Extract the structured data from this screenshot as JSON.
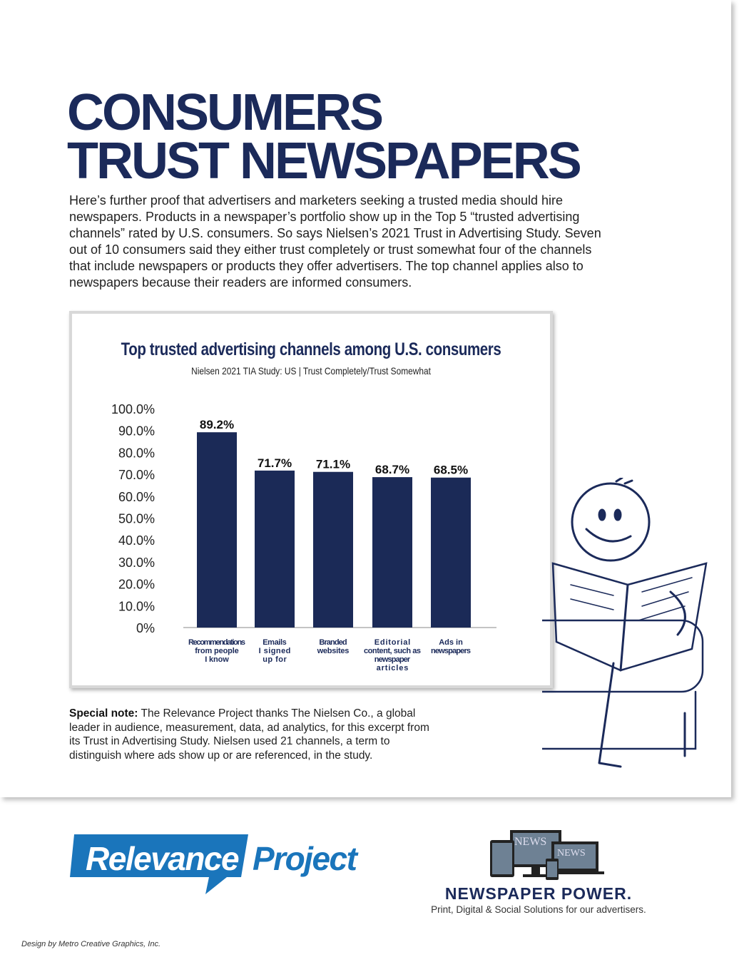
{
  "headline": {
    "line1": "CONSUMERS",
    "line2": "TRUST NEWSPAPERS"
  },
  "intro": "Here’s further proof that advertisers and marketers seeking a trusted media should hire newspapers. Products in a newspaper’s portfolio show up in the Top 5 “trusted advertising channels” rated by U.S. consumers. So says Nielsen’s 2021 Trust in Advertising Study. Seven out of 10 consumers said they either trust completely or trust somewhat four of the channels that include newspapers or products they offer advertisers. The top channel applies also to newspapers because their readers are informed consumers.",
  "chart_data": {
    "type": "bar",
    "title": "Top trusted advertising channels among U.S. consumers",
    "subtitle": "Nielsen 2021 TIA Study: US | Trust Completely/Trust Somewhat",
    "categories": [
      "Recommendations from people I know",
      "Emails I signed up for",
      "Branded websites",
      "Editorial content, such as newspaper articles",
      "Ads in newspapers"
    ],
    "category_lines": [
      [
        "Recommendations",
        "from people",
        "I know"
      ],
      [
        "Emails",
        "I signed",
        "up for"
      ],
      [
        "Branded",
        "websites"
      ],
      [
        "Editorial",
        "content, such as",
        "newspaper",
        "articles"
      ],
      [
        "Ads in",
        "newspapers"
      ]
    ],
    "values": [
      89.2,
      71.7,
      71.1,
      68.7,
      68.5
    ],
    "data_labels": [
      "89.2%",
      "71.7%",
      "71.1%",
      "68.7%",
      "68.5%"
    ],
    "yticks": [
      "0%",
      "10.0%",
      "20.0%",
      "30.0%",
      "40.0%",
      "50.0%",
      "60.0%",
      "70.0%",
      "80.0%",
      "90.0%",
      "100.0%"
    ],
    "ylim": [
      0,
      100
    ],
    "grid": false,
    "bar_color": "#1b2a57"
  },
  "note": {
    "label": "Special note:",
    "text": " The Relevance Project thanks The Nielsen Co., a global leader in audience, measurement, data, ad analytics, for this excerpt from its Trust in Advertising Study. Nielsen used 21 channels, a term to distinguish where ads show up or are referenced, in the study."
  },
  "logo": {
    "word1": "Relevance",
    "word2": "Project",
    "color": "#1a75bb"
  },
  "newspaper_power": {
    "screen_text": "NEWS",
    "title": "NEWSPAPER POWER.",
    "subtitle": "Print, Digital & Social Solutions for our advertisers."
  },
  "credit": "Design by Metro Creative Graphics, Inc."
}
